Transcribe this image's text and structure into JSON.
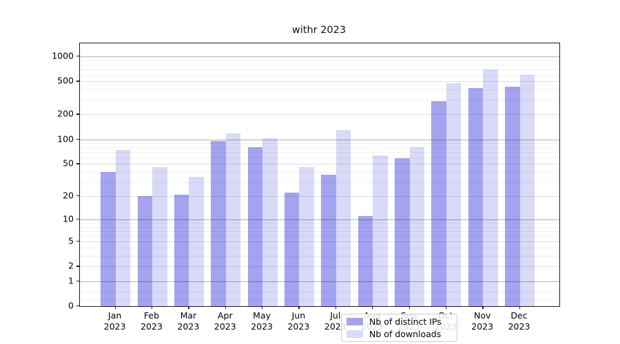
{
  "title": "withr 2023",
  "chart_data": {
    "type": "bar",
    "title": "withr 2023",
    "categories": [
      "Jan",
      "Feb",
      "Mar",
      "Apr",
      "May",
      "Jun",
      "Jul",
      "Aug",
      "Sep",
      "Oct",
      "Nov",
      "Dec"
    ],
    "year_label": "2023",
    "series": [
      {
        "name": "Nb of distinct IPs",
        "key": "ips",
        "color": "#a3a3f0",
        "values": [
          40,
          20,
          21,
          96,
          80,
          22,
          37,
          11,
          59,
          287,
          415,
          430
        ]
      },
      {
        "name": "Nb of downloads",
        "key": "downloads",
        "color": "#d9d9f8",
        "values": [
          74,
          46,
          35,
          118,
          102,
          46,
          130,
          64,
          80,
          477,
          698,
          600
        ]
      }
    ],
    "xlabel": "",
    "ylabel": "",
    "y_scale": "log10(value+1)",
    "ylim": [
      0,
      1420
    ],
    "grid": true,
    "legend_position": "lower-center",
    "y_axis": {
      "tick_labels": [
        "1000",
        "500",
        "200",
        "100",
        "50",
        "20",
        "10",
        "5",
        "2",
        "1",
        "0"
      ],
      "tick_values": [
        1000,
        500,
        200,
        100,
        50,
        20,
        10,
        5,
        2,
        1,
        0
      ],
      "power_gridlines": [
        1,
        10,
        100,
        1000
      ],
      "labeled_mid_gridlines": [
        2,
        5,
        20,
        50,
        200,
        500
      ],
      "minor_gridlines": [
        0.2,
        0.5,
        3,
        4,
        6,
        7,
        8,
        9,
        30,
        40,
        60,
        70,
        80,
        90,
        300,
        400,
        600,
        700,
        800,
        900
      ]
    }
  }
}
